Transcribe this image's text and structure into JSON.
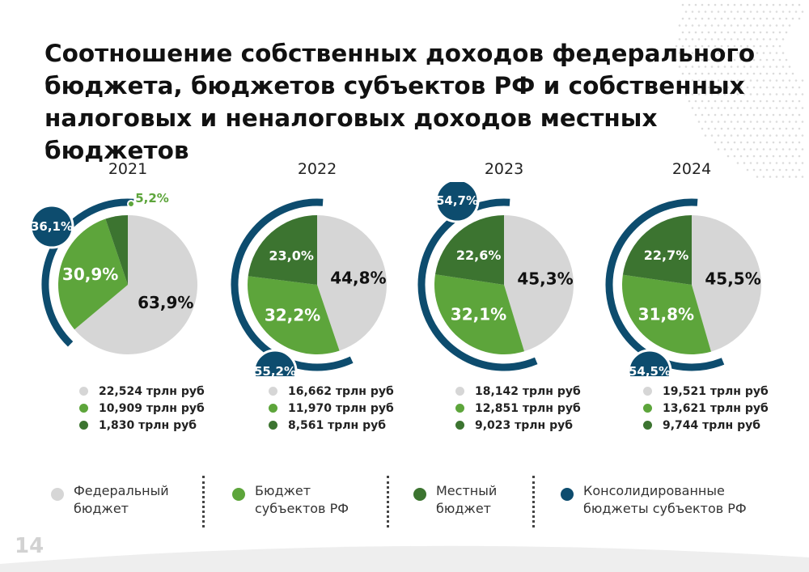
{
  "page": {
    "title": "Соотношение собственных доходов федерального бюджета, бюджетов субъектов РФ и собственных налоговых и неналоговых доходов местных бюджетов",
    "page_number": "14"
  },
  "colors": {
    "federal": "#d6d6d6",
    "regional": "#5da53b",
    "local": "#3c7430",
    "consolidated": "#0d4c6e",
    "page_number": "#d2d2d2"
  },
  "legend": [
    {
      "label": "Федеральный\nбюджет",
      "color_key": "federal"
    },
    {
      "label": "Бюджет\nсубъектов РФ",
      "color_key": "regional"
    },
    {
      "label": "Местный\nбюджет",
      "color_key": "local"
    },
    {
      "label": "Консолидированные\nбюджеты субъектов РФ",
      "color_key": "consolidated"
    }
  ],
  "chart_data": [
    {
      "type": "pie",
      "year": "2021",
      "slices": [
        {
          "label": "63,9%",
          "value": 63.9,
          "color_key": "federal"
        },
        {
          "label": "30,9%",
          "value": 30.9,
          "color_key": "regional"
        },
        {
          "label": "5,2%",
          "value": 5.2,
          "color_key": "local"
        }
      ],
      "consolidated": {
        "label": "36,1%",
        "value": 36.1
      },
      "amounts": [
        "22,524 трлн руб",
        "10,909 трлн руб",
        "1,830 трлн руб"
      ]
    },
    {
      "type": "pie",
      "year": "2022",
      "slices": [
        {
          "label": "44,8%",
          "value": 44.8,
          "color_key": "federal"
        },
        {
          "label": "32,2%",
          "value": 32.2,
          "color_key": "regional"
        },
        {
          "label": "23,0%",
          "value": 23.0,
          "color_key": "local"
        }
      ],
      "consolidated": {
        "label": "55,2%",
        "value": 55.2
      },
      "amounts": [
        "16,662 трлн руб",
        "11,970 трлн руб",
        "8,561 трлн руб"
      ]
    },
    {
      "type": "pie",
      "year": "2023",
      "slices": [
        {
          "label": "45,3%",
          "value": 45.3,
          "color_key": "federal"
        },
        {
          "label": "32,1%",
          "value": 32.1,
          "color_key": "regional"
        },
        {
          "label": "22,6%",
          "value": 22.6,
          "color_key": "local"
        }
      ],
      "consolidated": {
        "label": "54,7%",
        "value": 54.7
      },
      "amounts": [
        "18,142 трлн руб",
        "12,851 трлн руб",
        "9,023 трлн руб"
      ]
    },
    {
      "type": "pie",
      "year": "2024",
      "slices": [
        {
          "label": "45,5%",
          "value": 45.5,
          "color_key": "federal"
        },
        {
          "label": "31,8%",
          "value": 31.8,
          "color_key": "regional"
        },
        {
          "label": "22,7%",
          "value": 22.7,
          "color_key": "local"
        }
      ],
      "consolidated": {
        "label": "54,5%",
        "value": 54.5
      },
      "amounts": [
        "19,521 трлн руб",
        "13,621 трлн руб",
        "9,744 трлн руб"
      ]
    }
  ]
}
